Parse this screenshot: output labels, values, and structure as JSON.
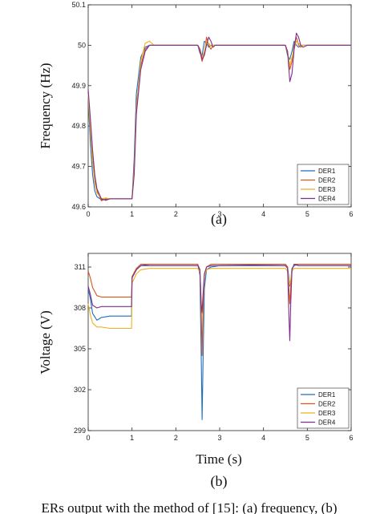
{
  "colors": {
    "DER1": "#1f6fbf",
    "DER2": "#d9541a",
    "DER3": "#edb120",
    "DER4": "#7e2f8e"
  },
  "caption": "ERs output with the method of [15]: (a) frequency, (b)",
  "chart_data": [
    {
      "type": "line",
      "sublabel": "(a)",
      "xlabel": "",
      "ylabel": "Frequency (Hz)",
      "xlim": [
        0,
        6
      ],
      "ylim": [
        49.6,
        50.1
      ],
      "xticks": [
        0,
        1,
        2,
        3,
        4,
        5,
        6
      ],
      "yticks": [
        49.6,
        49.7,
        49.8,
        49.9,
        50,
        50.1
      ],
      "ytick_labels": [
        "49.6",
        "49.7",
        "49.8",
        "49.9",
        "50",
        "50.1"
      ],
      "legend": "bottom-right",
      "grid": false,
      "series": [
        {
          "name": "DER1",
          "x": [
            0,
            0.05,
            0.1,
            0.15,
            0.2,
            0.3,
            0.4,
            0.5,
            0.7,
            0.95,
            1.0,
            1.05,
            1.1,
            1.2,
            1.3,
            1.4,
            1.5,
            1.7,
            2.0,
            2.5,
            2.55,
            2.6,
            2.65,
            2.7,
            2.75,
            2.8,
            2.85,
            2.9,
            3.0,
            3.2,
            4.5,
            4.55,
            4.6,
            4.65,
            4.7,
            4.75,
            4.8,
            4.85,
            4.9,
            5.0,
            5.2,
            6.0
          ],
          "y": [
            49.87,
            49.76,
            49.68,
            49.64,
            49.625,
            49.618,
            49.618,
            49.62,
            49.62,
            49.62,
            49.62,
            49.72,
            49.88,
            49.97,
            49.995,
            50.0,
            50.0,
            50.0,
            50.0,
            50.0,
            49.98,
            49.975,
            50.01,
            50.005,
            49.995,
            50.0,
            50.0,
            50.0,
            50.0,
            50.0,
            50.0,
            49.975,
            49.965,
            49.985,
            50.01,
            50.0,
            49.995,
            50.0,
            50.0,
            50.0,
            50.0,
            50.0
          ]
        },
        {
          "name": "DER2",
          "x": [
            0,
            0.05,
            0.1,
            0.15,
            0.2,
            0.3,
            0.4,
            0.5,
            0.7,
            0.95,
            1.0,
            1.05,
            1.1,
            1.2,
            1.3,
            1.4,
            1.5,
            1.7,
            2.0,
            2.5,
            2.55,
            2.6,
            2.65,
            2.7,
            2.75,
            2.8,
            2.85,
            2.9,
            3.0,
            3.2,
            4.5,
            4.55,
            4.6,
            4.65,
            4.7,
            4.75,
            4.8,
            4.85,
            4.9,
            5.0,
            5.2,
            6.0
          ],
          "y": [
            49.88,
            49.8,
            49.72,
            49.665,
            49.64,
            49.615,
            49.62,
            49.62,
            49.62,
            49.62,
            49.62,
            49.7,
            49.85,
            49.95,
            49.99,
            50.0,
            50.0,
            50.0,
            50.0,
            50.0,
            49.985,
            49.96,
            49.98,
            50.02,
            50.0,
            49.99,
            50.0,
            50.0,
            50.0,
            50.0,
            50.0,
            49.98,
            49.94,
            49.96,
            50.0,
            50.02,
            50.0,
            49.995,
            50.0,
            50.0,
            50.0,
            50.0
          ]
        },
        {
          "name": "DER3",
          "x": [
            0,
            0.05,
            0.1,
            0.15,
            0.2,
            0.3,
            0.4,
            0.5,
            0.7,
            0.95,
            1.0,
            1.05,
            1.1,
            1.2,
            1.3,
            1.4,
            1.5,
            1.7,
            2.0,
            2.5,
            2.55,
            2.6,
            2.65,
            2.7,
            2.75,
            2.8,
            2.85,
            2.9,
            3.0,
            3.2,
            4.5,
            4.55,
            4.6,
            4.65,
            4.7,
            4.75,
            4.8,
            4.85,
            4.9,
            5.0,
            5.2,
            6.0
          ],
          "y": [
            49.88,
            49.79,
            49.71,
            49.66,
            49.635,
            49.62,
            49.622,
            49.62,
            49.62,
            49.62,
            49.62,
            49.69,
            49.84,
            49.96,
            50.005,
            50.01,
            50.0,
            50.0,
            50.0,
            50.0,
            49.99,
            49.97,
            49.985,
            50.01,
            50.005,
            49.998,
            50.0,
            50.0,
            50.0,
            50.0,
            50.0,
            49.985,
            49.95,
            49.97,
            49.99,
            50.01,
            50.005,
            50.0,
            50.0,
            50.0,
            50.0,
            50.0
          ]
        },
        {
          "name": "DER4",
          "x": [
            0,
            0.05,
            0.1,
            0.15,
            0.2,
            0.3,
            0.4,
            0.5,
            0.7,
            0.95,
            1.0,
            1.05,
            1.1,
            1.2,
            1.3,
            1.4,
            1.5,
            1.7,
            2.0,
            2.5,
            2.55,
            2.6,
            2.65,
            2.7,
            2.75,
            2.8,
            2.85,
            2.9,
            3.0,
            3.2,
            4.5,
            4.55,
            4.6,
            4.65,
            4.7,
            4.75,
            4.8,
            4.85,
            4.9,
            5.0,
            5.2,
            6.0
          ],
          "y": [
            49.89,
            49.82,
            49.74,
            49.68,
            49.645,
            49.62,
            49.616,
            49.62,
            49.62,
            49.62,
            49.62,
            49.68,
            49.83,
            49.94,
            49.985,
            50.0,
            50.0,
            50.0,
            50.0,
            50.0,
            49.99,
            49.965,
            49.975,
            50.0,
            50.02,
            50.01,
            49.995,
            50.0,
            50.0,
            50.0,
            50.0,
            49.985,
            49.91,
            49.93,
            49.99,
            50.03,
            50.02,
            50.0,
            49.995,
            50.0,
            50.0,
            50.0
          ]
        }
      ]
    },
    {
      "type": "line",
      "sublabel": "(b)",
      "xlabel": "Time (s)",
      "ylabel": "Voltage (V)",
      "xlim": [
        0,
        6
      ],
      "ylim": [
        299,
        312
      ],
      "xticks": [
        0,
        1,
        2,
        3,
        4,
        5,
        6
      ],
      "yticks": [
        299,
        302,
        305,
        308,
        311
      ],
      "ytick_labels": [
        "299",
        "302",
        "305",
        "308",
        "311"
      ],
      "legend": "bottom-right",
      "grid": false,
      "series": [
        {
          "name": "DER1",
          "x": [
            0,
            0.05,
            0.1,
            0.2,
            0.3,
            0.5,
            0.7,
            0.99,
            1.0,
            1.1,
            1.2,
            1.4,
            1.6,
            2.0,
            2.5,
            2.55,
            2.58,
            2.6,
            2.62,
            2.65,
            2.7,
            2.8,
            3.0,
            4.5,
            4.55,
            4.58,
            4.6,
            4.62,
            4.65,
            4.7,
            4.8,
            5.0,
            6.0
          ],
          "y": [
            309.4,
            308.7,
            307.6,
            307.1,
            307.3,
            307.4,
            307.4,
            307.4,
            310.2,
            310.8,
            311.1,
            311.2,
            311.2,
            311.2,
            311.2,
            310.4,
            304.5,
            299.8,
            303.8,
            309.4,
            310.8,
            311.0,
            311.1,
            311.2,
            311.0,
            310.2,
            309.6,
            310.0,
            310.9,
            311.1,
            311.2,
            311.2,
            311.2
          ]
        },
        {
          "name": "DER2",
          "x": [
            0,
            0.05,
            0.1,
            0.2,
            0.3,
            0.5,
            0.7,
            0.99,
            1.0,
            1.1,
            1.2,
            1.4,
            1.6,
            2.0,
            2.5,
            2.55,
            2.58,
            2.6,
            2.62,
            2.65,
            2.7,
            2.8,
            3.0,
            4.5,
            4.55,
            4.58,
            4.6,
            4.62,
            4.65,
            4.7,
            4.8,
            5.0,
            6.0
          ],
          "y": [
            310.7,
            310.2,
            309.5,
            308.9,
            308.8,
            308.8,
            308.8,
            308.8,
            310.3,
            310.9,
            311.2,
            311.2,
            311.2,
            311.2,
            311.2,
            310.8,
            307.8,
            304.5,
            307.9,
            310.3,
            311.0,
            311.2,
            311.2,
            311.2,
            311.0,
            309.4,
            308.3,
            309.4,
            310.8,
            311.2,
            311.2,
            311.2,
            311.2
          ]
        },
        {
          "name": "DER3",
          "x": [
            0,
            0.05,
            0.1,
            0.2,
            0.3,
            0.5,
            0.7,
            0.99,
            1.0,
            1.1,
            1.2,
            1.4,
            1.6,
            2.0,
            2.5,
            2.55,
            2.58,
            2.6,
            2.62,
            2.65,
            2.7,
            2.8,
            3.0,
            4.5,
            4.55,
            4.58,
            4.6,
            4.62,
            4.65,
            4.7,
            4.8,
            5.0,
            6.0
          ],
          "y": [
            308.3,
            307.5,
            306.9,
            306.6,
            306.6,
            306.5,
            306.5,
            306.5,
            309.8,
            310.5,
            310.8,
            310.9,
            310.9,
            310.9,
            310.9,
            310.6,
            308.5,
            307.6,
            308.8,
            310.3,
            310.8,
            310.9,
            310.9,
            310.9,
            310.7,
            310.0,
            309.7,
            310.1,
            310.7,
            310.9,
            310.9,
            310.9,
            310.9
          ]
        },
        {
          "name": "DER4",
          "x": [
            0,
            0.05,
            0.1,
            0.2,
            0.3,
            0.5,
            0.7,
            0.99,
            1.0,
            1.1,
            1.2,
            1.4,
            1.6,
            2.0,
            2.5,
            2.55,
            2.58,
            2.6,
            2.62,
            2.65,
            2.7,
            2.8,
            3.0,
            4.5,
            4.55,
            4.58,
            4.6,
            4.62,
            4.65,
            4.7,
            4.8,
            5.0,
            6.0
          ],
          "y": [
            309.6,
            309.0,
            308.2,
            308.0,
            308.1,
            308.1,
            308.1,
            308.1,
            310.2,
            310.8,
            311.1,
            311.1,
            311.1,
            311.1,
            311.1,
            310.8,
            308.2,
            307.7,
            308.9,
            310.5,
            311.0,
            311.1,
            311.1,
            311.1,
            310.9,
            307.4,
            305.6,
            308.2,
            310.8,
            311.2,
            311.1,
            311.1,
            311.1
          ]
        }
      ]
    }
  ]
}
